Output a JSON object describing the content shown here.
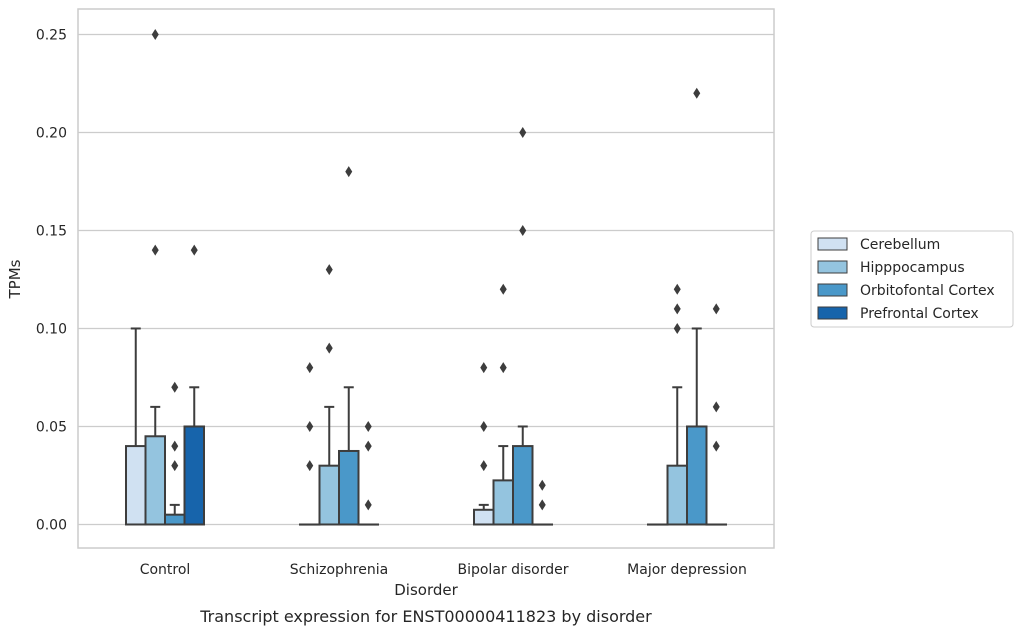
{
  "chart_data": {
    "type": "bar",
    "caption": "Transcript expression for ENST00000411823 by disorder",
    "xlabel": "Disorder",
    "ylabel": "TPMs",
    "ylim": [
      -0.012,
      0.263
    ],
    "yticks": [
      0.0,
      0.05,
      0.1,
      0.15,
      0.2,
      0.25
    ],
    "ytick_labels": [
      "0.00",
      "0.05",
      "0.10",
      "0.15",
      "0.20",
      "0.25"
    ],
    "grid": "horizontal",
    "legend_position": "right",
    "categories": [
      "Control",
      "Schizophrenia",
      "Bipolar disorder",
      "Major depression"
    ],
    "series": [
      {
        "name": "Cerebellum",
        "color": "#d0e1f2",
        "values": [
          0.04,
          0.0,
          0.0075,
          0.0
        ],
        "error_top": [
          0.1,
          0.0,
          0.01,
          0.0
        ],
        "outliers": [
          [],
          [
            0.03,
            0.05,
            0.08
          ],
          [
            0.03,
            0.05,
            0.08
          ],
          []
        ]
      },
      {
        "name": "Hipppocampus",
        "color": "#94c4df",
        "values": [
          0.045,
          0.03,
          0.0225,
          0.03
        ],
        "error_top": [
          0.06,
          0.06,
          0.04,
          0.07
        ],
        "outliers": [
          [
            0.14,
            0.25
          ],
          [
            0.09,
            0.13
          ],
          [
            0.08,
            0.12
          ],
          [
            0.1,
            0.11,
            0.12
          ]
        ]
      },
      {
        "name": "Orbitofontal Cortex",
        "color": "#4a98c9",
        "values": [
          0.005,
          0.0375,
          0.04,
          0.05
        ],
        "error_top": [
          0.01,
          0.07,
          0.05,
          0.1
        ],
        "outliers": [
          [
            0.03,
            0.04,
            0.07
          ],
          [
            0.18
          ],
          [
            0.15,
            0.2
          ],
          [
            0.22
          ]
        ]
      },
      {
        "name": "Prefrontal Cortex",
        "color": "#1764ab",
        "values": [
          0.05,
          0.0,
          0.0,
          0.0
        ],
        "error_top": [
          0.07,
          0.0,
          0.0,
          0.0
        ],
        "outliers": [
          [
            0.14
          ],
          [
            0.01,
            0.04,
            0.05
          ],
          [
            0.01,
            0.02
          ],
          [
            0.04,
            0.06,
            0.11
          ]
        ]
      }
    ]
  }
}
